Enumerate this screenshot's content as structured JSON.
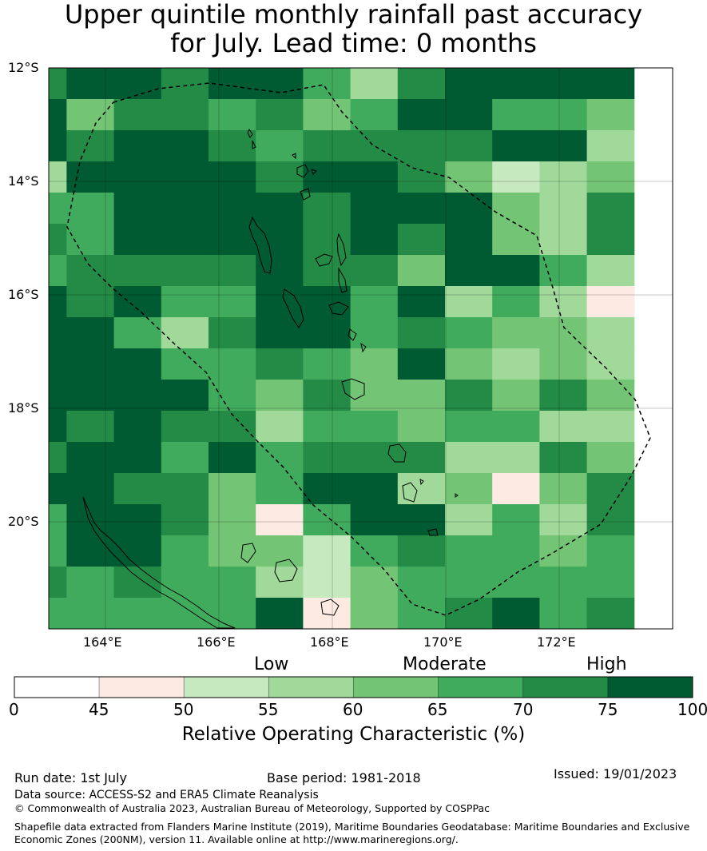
{
  "title_line1": "Upper quintile monthly rainfall past accuracy",
  "title_line2": "for July. Lead time: 0 months",
  "map": {
    "lat_labels": [
      "12°S",
      "14°S",
      "16°S",
      "18°S",
      "20°S"
    ],
    "lon_labels": [
      "164°E",
      "166°E",
      "168°E",
      "170°E",
      "172°E"
    ],
    "grid_values": [
      [
        72,
        75,
        78,
        70,
        78,
        78,
        65,
        58,
        74,
        78,
        78,
        78,
        78
      ],
      [
        78,
        62,
        72,
        72,
        68,
        72,
        62,
        68,
        76,
        78,
        68,
        68,
        62
      ],
      [
        78,
        74,
        78,
        78,
        72,
        68,
        72,
        74,
        74,
        74,
        78,
        78,
        58
      ],
      [
        58,
        78,
        78,
        78,
        78,
        74,
        78,
        78,
        74,
        62,
        52,
        58,
        62
      ],
      [
        68,
        68,
        78,
        78,
        78,
        78,
        74,
        78,
        78,
        78,
        62,
        58,
        74
      ],
      [
        74,
        68,
        78,
        78,
        78,
        78,
        74,
        78,
        74,
        78,
        62,
        58,
        74
      ],
      [
        68,
        74,
        74,
        74,
        74,
        78,
        74,
        74,
        62,
        78,
        78,
        68,
        58
      ],
      [
        78,
        74,
        78,
        68,
        68,
        78,
        78,
        68,
        78,
        58,
        68,
        58,
        48
      ],
      [
        78,
        78,
        68,
        56,
        74,
        78,
        78,
        68,
        74,
        68,
        62,
        62,
        56
      ],
      [
        78,
        78,
        78,
        68,
        68,
        74,
        68,
        62,
        78,
        62,
        58,
        62,
        56
      ],
      [
        78,
        78,
        78,
        78,
        68,
        62,
        74,
        62,
        62,
        74,
        62,
        74,
        62
      ],
      [
        78,
        74,
        78,
        74,
        74,
        56,
        68,
        68,
        62,
        68,
        68,
        58,
        58
      ],
      [
        74,
        78,
        78,
        68,
        78,
        68,
        74,
        74,
        74,
        58,
        56,
        74,
        62
      ],
      [
        78,
        78,
        74,
        74,
        62,
        68,
        78,
        78,
        58,
        62,
        48,
        62,
        74
      ],
      [
        68,
        78,
        78,
        74,
        62,
        48,
        68,
        78,
        78,
        58,
        68,
        58,
        74
      ],
      [
        68,
        78,
        78,
        68,
        62,
        62,
        54,
        68,
        74,
        68,
        68,
        62,
        68
      ],
      [
        72,
        68,
        74,
        68,
        68,
        58,
        54,
        62,
        68,
        68,
        68,
        68,
        68
      ],
      [
        68,
        68,
        68,
        68,
        68,
        78,
        48,
        62,
        68,
        74,
        78,
        68,
        74
      ]
    ]
  },
  "colorbar": {
    "category_labels": [
      "Low",
      "Moderate",
      "High"
    ],
    "tick_labels": [
      "0",
      "45",
      "50",
      "55",
      "60",
      "65",
      "70",
      "75",
      "100"
    ],
    "bin_colors": [
      "#ffffff",
      "#fdebe3",
      "#c7e9c0",
      "#a1d99b",
      "#74c476",
      "#41ab5d",
      "#238b45",
      "#005a32"
    ],
    "title": "Relative Operating Characteristic (%)"
  },
  "footer": {
    "run_date": "Run date: 1st July",
    "base_period": "Base period: 1981-2018",
    "issued": "Issued: 19/01/2023",
    "data_source": "Data source: ACCESS-S2 and ERA5 Climate Reanalysis",
    "copyright": "© Commonwealth of Australia 2023, Australian Bureau of Meteorology, Supported by COSPPac",
    "shapefile_line1": "Shapefile data extracted from Flanders Marine Institute (2019), Maritime Boundaries Geodatabase: Maritime Boundaries and Exclusive",
    "shapefile_line2": "Economic Zones (200NM), version 11. Available online at http://www.marineregions.org/."
  }
}
